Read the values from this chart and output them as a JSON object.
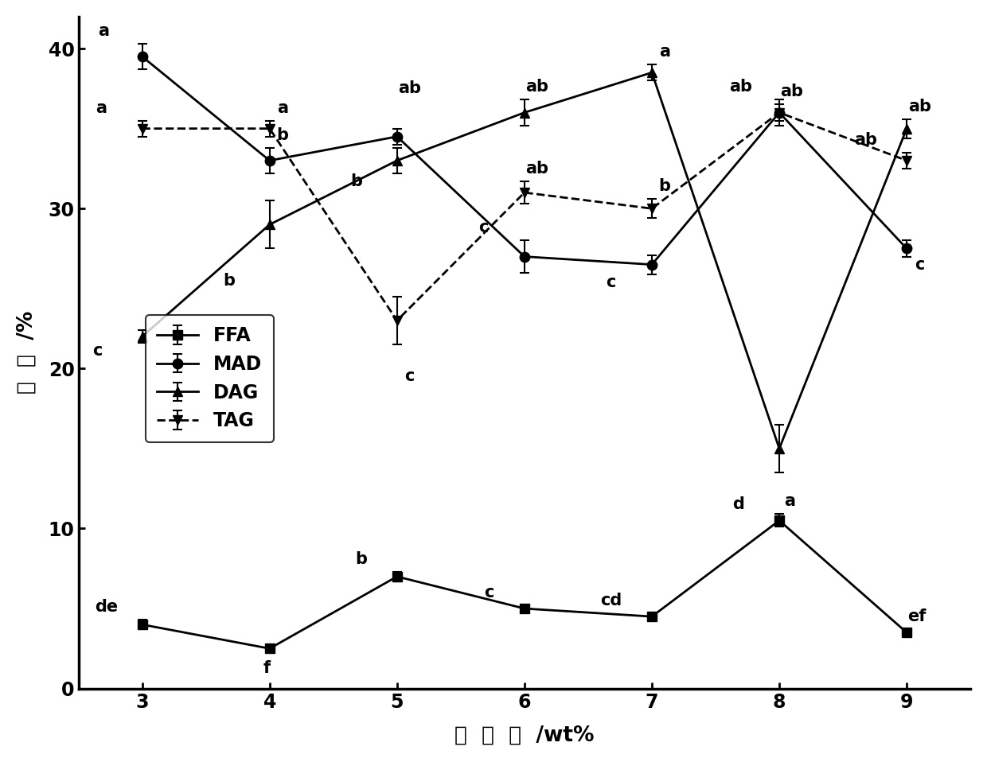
{
  "x": [
    3,
    4,
    5,
    6,
    7,
    8,
    9
  ],
  "FFA": [
    4.0,
    2.5,
    7.0,
    5.0,
    4.5,
    10.5,
    3.5
  ],
  "FFA_err": [
    0.3,
    0.2,
    0.3,
    0.2,
    0.2,
    0.4,
    0.2
  ],
  "MAD": [
    39.5,
    33.0,
    34.5,
    27.0,
    26.5,
    36.0,
    27.5
  ],
  "MAD_err": [
    0.8,
    0.8,
    0.5,
    1.0,
    0.6,
    0.8,
    0.5
  ],
  "DAG": [
    22.0,
    29.0,
    33.0,
    36.0,
    38.5,
    15.0,
    35.0
  ],
  "DAG_err": [
    0.4,
    1.5,
    0.8,
    0.8,
    0.5,
    1.5,
    0.6
  ],
  "TAG": [
    35.0,
    35.0,
    23.0,
    31.0,
    30.0,
    36.0,
    33.0
  ],
  "TAG_err": [
    0.5,
    0.5,
    1.5,
    0.7,
    0.6,
    0.5,
    0.5
  ],
  "FFA_labels": [
    "de",
    "f",
    "b",
    "c",
    "cd",
    "a",
    "ef"
  ],
  "MAD_labels": [
    "a",
    "b",
    "ab",
    "c",
    "c",
    "ab",
    "c"
  ],
  "DAG_labels": [
    "c",
    "b",
    "b",
    "ab",
    "a",
    "d",
    "ab"
  ],
  "TAG_labels": [
    "a",
    "a",
    "c",
    "ab",
    "b",
    "ab",
    "ab"
  ],
  "xlabel": "加  酵  量  /wt%",
  "ylabel": "含  量  /%",
  "ylim": [
    0,
    42
  ],
  "xlim": [
    2.5,
    9.5
  ],
  "legend_labels": [
    "FFA",
    "MAD",
    "DAG",
    "TAG"
  ],
  "color": "#000000",
  "background": "#ffffff"
}
